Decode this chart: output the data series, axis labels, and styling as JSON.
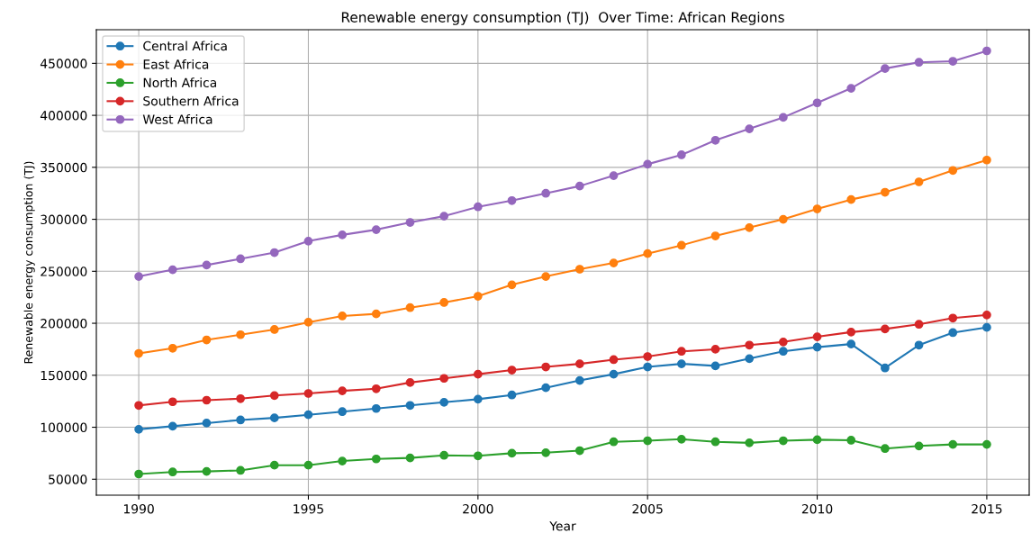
{
  "chart_data": {
    "type": "line",
    "title": "Renewable energy consumption (TJ)  Over Time: African Regions",
    "xlabel": "Year",
    "ylabel": "Renewable energy consumption (TJ)",
    "x": [
      1990,
      1991,
      1992,
      1993,
      1994,
      1995,
      1996,
      1997,
      1998,
      1999,
      2000,
      2001,
      2002,
      2003,
      2004,
      2005,
      2006,
      2007,
      2008,
      2009,
      2010,
      2011,
      2012,
      2013,
      2014,
      2015
    ],
    "series": [
      {
        "name": "Central Africa",
        "color": "#1f77b4",
        "values": [
          98000,
          101000,
          104000,
          107000,
          109000,
          112000,
          115000,
          118000,
          121000,
          124000,
          127000,
          131000,
          138000,
          145000,
          151000,
          158000,
          161000,
          159000,
          166000,
          173000,
          177000,
          180000,
          157000,
          179000,
          191000,
          196000
        ]
      },
      {
        "name": "East Africa",
        "color": "#ff7f0e",
        "values": [
          171000,
          176000,
          184000,
          189000,
          194000,
          201000,
          207000,
          209000,
          215000,
          220000,
          226000,
          237000,
          245000,
          252000,
          258000,
          267000,
          275000,
          284000,
          292000,
          300000,
          310000,
          319000,
          326000,
          336000,
          347000,
          357000
        ]
      },
      {
        "name": "North Africa",
        "color": "#2ca02c",
        "values": [
          55000,
          57000,
          57500,
          58500,
          63500,
          63500,
          67500,
          69500,
          70500,
          73000,
          72500,
          75000,
          75500,
          77500,
          86000,
          87000,
          88500,
          86000,
          85000,
          87000,
          88000,
          87500,
          79500,
          82000,
          83500,
          83500
        ]
      },
      {
        "name": "Southern Africa",
        "color": "#d62728",
        "values": [
          121000,
          124500,
          126000,
          127500,
          130500,
          132500,
          135000,
          137000,
          143000,
          147000,
          151000,
          155000,
          158000,
          161000,
          165000,
          168000,
          173000,
          175000,
          179000,
          182000,
          187000,
          191500,
          194500,
          199000,
          205000,
          208000
        ]
      },
      {
        "name": "West Africa",
        "color": "#9467bd",
        "values": [
          245000,
          251500,
          256000,
          262000,
          268000,
          279000,
          285000,
          290000,
          297000,
          303000,
          312000,
          318000,
          325000,
          332000,
          342000,
          353000,
          362000,
          376000,
          387000,
          398000,
          412000,
          426000,
          445000,
          451000,
          452000,
          462000
        ]
      }
    ],
    "xlim": [
      1988.75,
      2016.25
    ],
    "xticks": [
      1990,
      1995,
      2000,
      2005,
      2010,
      2015
    ],
    "ylim": [
      34650,
      482350
    ],
    "yticks": [
      50000,
      100000,
      150000,
      200000,
      250000,
      300000,
      350000,
      400000,
      450000
    ],
    "grid": true,
    "legend": "top left",
    "marker": "circle",
    "line_style": "solid"
  }
}
